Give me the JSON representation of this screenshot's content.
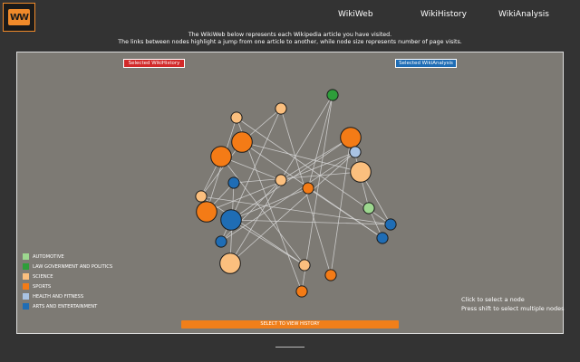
{
  "brand": {
    "logo_text": "WW",
    "accent": "#f08a2a"
  },
  "nav": {
    "items": [
      "WikiWeb",
      "WikiHistory",
      "WikiAnalysis"
    ]
  },
  "intro": {
    "line1": "The WikiWeb below represents each Wikipedia article you have visited.",
    "line2": "The links between nodes highlight a jump from one article to another, while node size represents number of page visits."
  },
  "buttons": {
    "selected_history": "Selected WikiHistory",
    "selected_analysis": "Selected WikiAnalysis",
    "view_history": "SELECT TO VIEW HISTORY"
  },
  "legend": [
    {
      "label": "AUTOMOTIVE",
      "color": "#9dd88f"
    },
    {
      "label": "LAW GOVERNMENT AND POLITICS",
      "color": "#2e9e3a"
    },
    {
      "label": "SCIENCE",
      "color": "#fbbf7e"
    },
    {
      "label": "SPORTS",
      "color": "#f47b16"
    },
    {
      "label": "HEALTH AND FITNESS",
      "color": "#a9c3e3"
    },
    {
      "label": "ARTS AND ENTERTAINMENT",
      "color": "#1f6db5"
    }
  ],
  "help": {
    "line1": "Click to select a node",
    "line2": "Press shift to select multiple nodes"
  },
  "graph": {
    "nodes": [
      {
        "id": "n1",
        "category": "LAW GOVERNMENT AND POLITICS",
        "visits": 1
      },
      {
        "id": "n2",
        "category": "SCIENCE",
        "visits": 1
      },
      {
        "id": "n3",
        "category": "SCIENCE",
        "visits": 1
      },
      {
        "id": "n4",
        "category": "SPORTS",
        "visits": 3
      },
      {
        "id": "n5",
        "category": "SPORTS",
        "visits": 3
      },
      {
        "id": "n6",
        "category": "HEALTH AND FITNESS",
        "visits": 1
      },
      {
        "id": "n7",
        "category": "SPORTS",
        "visits": 3
      },
      {
        "id": "n8",
        "category": "SCIENCE",
        "visits": 3
      },
      {
        "id": "n9",
        "category": "ARTS AND ENTERTAINMENT",
        "visits": 1
      },
      {
        "id": "n10",
        "category": "SCIENCE",
        "visits": 1
      },
      {
        "id": "n11",
        "category": "SPORTS",
        "visits": 1
      },
      {
        "id": "n12",
        "category": "SCIENCE",
        "visits": 1
      },
      {
        "id": "n13",
        "category": "AUTOMOTIVE",
        "visits": 1
      },
      {
        "id": "n14",
        "category": "SPORTS",
        "visits": 3
      },
      {
        "id": "n15",
        "category": "ARTS AND ENTERTAINMENT",
        "visits": 3
      },
      {
        "id": "n16",
        "category": "ARTS AND ENTERTAINMENT",
        "visits": 1
      },
      {
        "id": "n17",
        "category": "ARTS AND ENTERTAINMENT",
        "visits": 1
      },
      {
        "id": "n18",
        "category": "ARTS AND ENTERTAINMENT",
        "visits": 1
      },
      {
        "id": "n19",
        "category": "SCIENCE",
        "visits": 3
      },
      {
        "id": "n20",
        "category": "SCIENCE",
        "visits": 1
      },
      {
        "id": "n21",
        "category": "SPORTS",
        "visits": 1
      },
      {
        "id": "n22",
        "category": "SPORTS",
        "visits": 1
      }
    ],
    "links": [
      [
        "n1",
        "n11"
      ],
      [
        "n1",
        "n19"
      ],
      [
        "n2",
        "n4"
      ],
      [
        "n2",
        "n21"
      ],
      [
        "n3",
        "n14"
      ],
      [
        "n3",
        "n22"
      ],
      [
        "n4",
        "n8"
      ],
      [
        "n4",
        "n18"
      ],
      [
        "n5",
        "n15"
      ],
      [
        "n5",
        "n10"
      ],
      [
        "n5",
        "n13"
      ],
      [
        "n6",
        "n14"
      ],
      [
        "n6",
        "n17"
      ],
      [
        "n7",
        "n12"
      ],
      [
        "n7",
        "n20"
      ],
      [
        "n8",
        "n16"
      ],
      [
        "n8",
        "n9"
      ],
      [
        "n9",
        "n19"
      ],
      [
        "n10",
        "n17"
      ],
      [
        "n11",
        "n15"
      ],
      [
        "n12",
        "n16"
      ],
      [
        "n13",
        "n18"
      ],
      [
        "n14",
        "n9"
      ],
      [
        "n15",
        "n20"
      ],
      [
        "n16",
        "n3"
      ],
      [
        "n17",
        "n2"
      ],
      [
        "n18",
        "n11"
      ],
      [
        "n19",
        "n6"
      ],
      [
        "n20",
        "n12"
      ],
      [
        "n21",
        "n5"
      ],
      [
        "n7",
        "n10"
      ],
      [
        "n22",
        "n1"
      ],
      [
        "n4",
        "n12"
      ],
      [
        "n15",
        "n16"
      ]
    ]
  }
}
